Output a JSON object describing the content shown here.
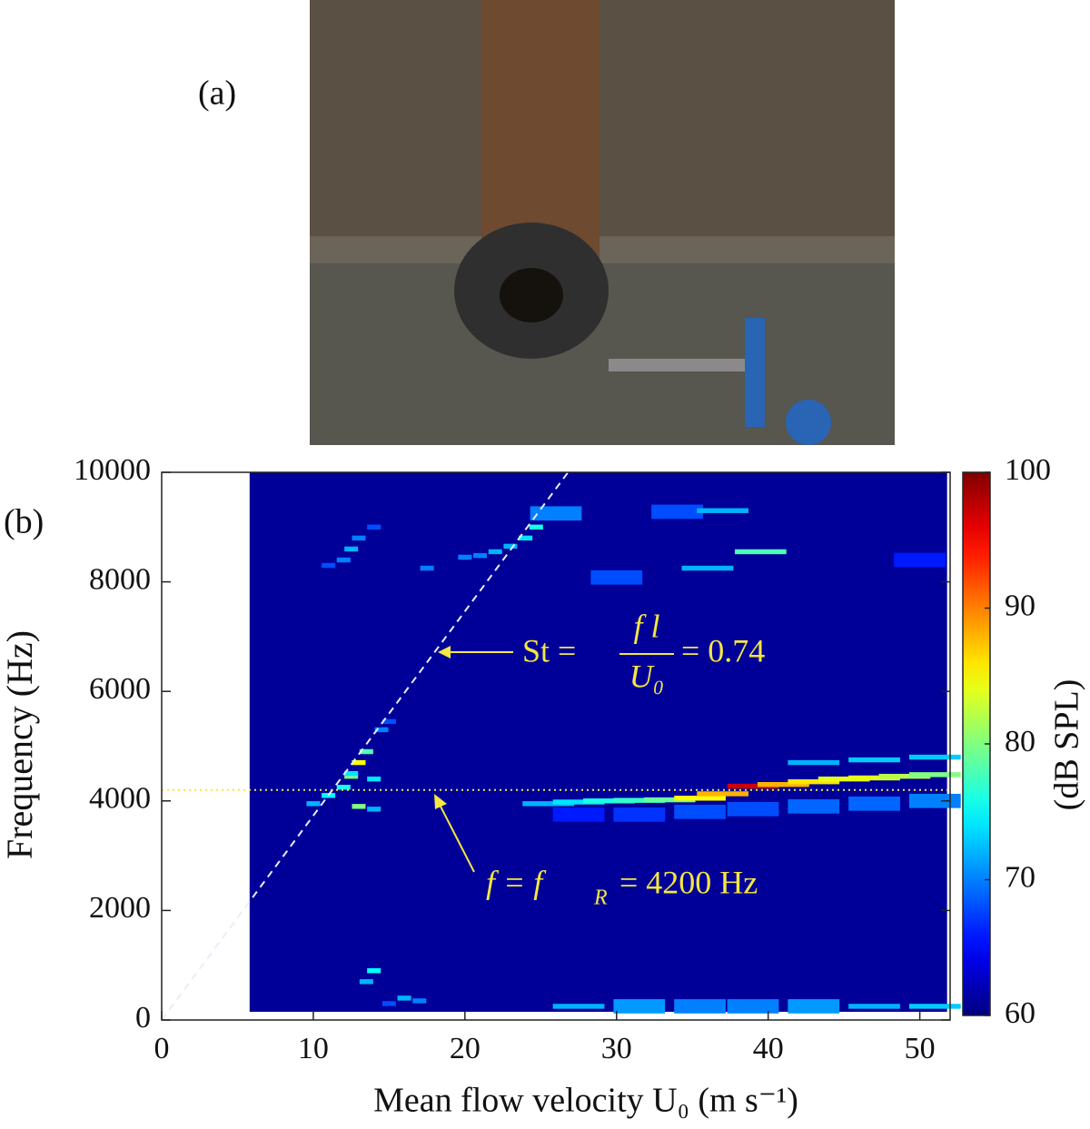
{
  "panel_a": {
    "label": "(a)"
  },
  "chart_data": {
    "type": "heatmap",
    "panel_label": "(b)",
    "xlabel": "Mean flow velocity U₀ (m s⁻¹)",
    "ylabel": "Frequency (Hz)",
    "colorbar_label": "(dB SPL)",
    "colormap": "jet",
    "xlim": [
      0,
      52
    ],
    "ylim": [
      0,
      10000
    ],
    "xticks": [
      0,
      10,
      20,
      30,
      40,
      50
    ],
    "yticks": [
      0,
      2000,
      4000,
      6000,
      8000,
      10000
    ],
    "clim": [
      60,
      100
    ],
    "cticks": [
      60,
      70,
      80,
      90,
      100
    ],
    "x_extent": [
      5.8,
      51.8
    ],
    "y_extent": [
      150,
      10000
    ],
    "background_level": 61,
    "cells": {
      "x": [
        25.5,
        27.5,
        29.5,
        31.5,
        33.5,
        35.5,
        37,
        39,
        41,
        43,
        45,
        47,
        49,
        51,
        27.5,
        31.5,
        35.5,
        39,
        43,
        47,
        51,
        43,
        47,
        51,
        27.5,
        31.5,
        35.5,
        39,
        43,
        47,
        51,
        10,
        11,
        12,
        12.5,
        13,
        13.5,
        14,
        13,
        14,
        14.5,
        15,
        13.5,
        14,
        16,
        17,
        15,
        12.5,
        20,
        21,
        22,
        23,
        24,
        24.7,
        11,
        12,
        12.5,
        13,
        14,
        17.5,
        26,
        34,
        37,
        39.5,
        36,
        30,
        50
      ],
      "y": [
        3950,
        3980,
        4000,
        4010,
        4020,
        4050,
        4130,
        4270,
        4300,
        4350,
        4400,
        4420,
        4450,
        4480,
        3750,
        3750,
        3800,
        3850,
        3900,
        3950,
        4000,
        4700,
        4750,
        4800,
        250,
        250,
        250,
        250,
        250,
        250,
        250,
        3950,
        4100,
        4250,
        4450,
        4700,
        4900,
        4400,
        3900,
        3850,
        5300,
        5450,
        700,
        900,
        400,
        350,
        300,
        4500,
        8450,
        8480,
        8550,
        8650,
        8800,
        9000,
        8300,
        8400,
        8600,
        8800,
        9000,
        8250,
        9250,
        9280,
        9300,
        8550,
        8250,
        8080,
        8400
      ],
      "values": [
        72,
        74,
        76,
        77,
        79,
        85,
        88,
        97,
        88,
        86,
        84,
        84,
        82,
        80,
        66,
        67,
        68,
        68,
        69,
        69,
        70,
        72,
        73,
        73,
        72,
        71,
        70,
        70,
        71,
        72,
        73,
        72,
        75,
        76,
        80,
        85,
        78,
        74,
        80,
        72,
        70,
        68,
        72,
        75,
        72,
        70,
        68,
        74,
        70,
        70,
        72,
        72,
        74,
        76,
        68,
        70,
        72,
        70,
        68,
        70,
        70,
        68,
        72,
        78,
        72,
        68,
        66
      ]
    },
    "st_line": {
      "x": [
        0,
        26.8
      ],
      "y": [
        0,
        10000
      ]
    },
    "ref_line": 4200,
    "annotations": {
      "strouhal": {
        "lhs": "St =",
        "numerator": "f l",
        "denominator": "U₀",
        "rhs": "= 0.74"
      },
      "resonance": {
        "lhs": "f = f",
        "sub": "R",
        "rhs": "= 4200 Hz"
      }
    }
  }
}
